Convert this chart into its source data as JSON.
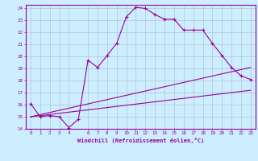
{
  "xlabel": "Windchill (Refroidissement éolien,°C)",
  "background_color": "#cceeff",
  "line_color": "#990099",
  "grid_color": "#aabbcc",
  "xlim": [
    -0.5,
    23.5
  ],
  "ylim": [
    14,
    24.3
  ],
  "yticks": [
    14,
    15,
    16,
    17,
    18,
    19,
    20,
    21,
    22,
    23,
    24
  ],
  "xticks": [
    0,
    1,
    2,
    3,
    4,
    6,
    7,
    8,
    9,
    10,
    11,
    12,
    13,
    14,
    15,
    16,
    17,
    18,
    19,
    20,
    21,
    22,
    23
  ],
  "curve1_x": [
    0,
    1,
    2,
    3,
    4,
    5,
    6,
    7,
    8,
    9,
    10,
    11,
    12,
    13,
    14,
    15,
    16,
    17,
    18,
    19,
    20,
    21,
    22,
    23
  ],
  "curve1_y": [
    16.1,
    15.0,
    15.1,
    15.0,
    14.1,
    14.8,
    19.7,
    19.1,
    20.1,
    21.1,
    23.3,
    24.1,
    24.0,
    23.5,
    23.1,
    23.1,
    22.2,
    22.2,
    22.2,
    21.1,
    20.1,
    19.1,
    18.4,
    18.1
  ],
  "curve2_x": [
    0,
    23
  ],
  "curve2_y": [
    15.0,
    17.2
  ],
  "curve3_x": [
    0,
    23
  ],
  "curve3_y": [
    15.0,
    19.1
  ]
}
